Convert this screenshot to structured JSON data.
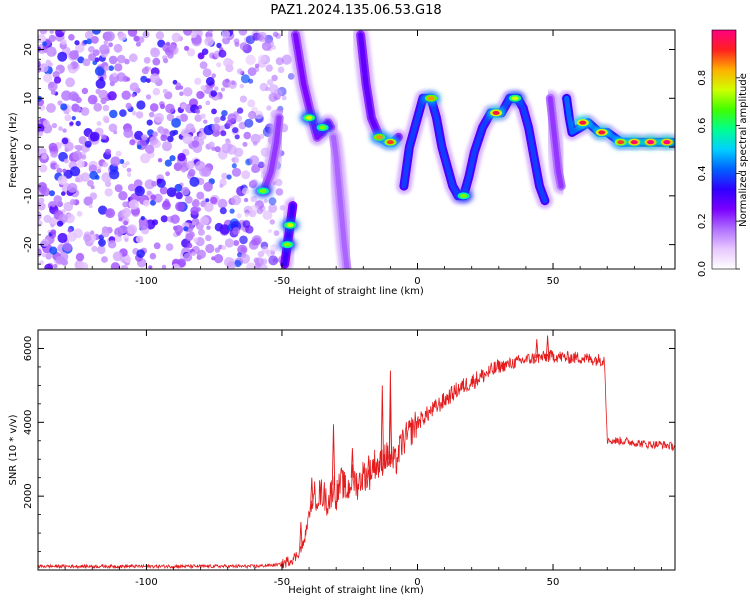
{
  "title": "PAZ1.2024.135.06.53.G18",
  "chart_data": [
    {
      "type": "heatmap",
      "xlabel": "Height of straight line (km)",
      "ylabel": "Frequency (Hz)",
      "xlim": [
        -140,
        95
      ],
      "ylim": [
        -25,
        24
      ],
      "xticks": [
        -100,
        -50,
        0,
        50
      ],
      "yticks": [
        -20,
        -10,
        0,
        10,
        20
      ],
      "grid": false,
      "colorbar": {
        "label": "Normalized spectral amplitude",
        "range": [
          0,
          1
        ],
        "ticks": [
          0.0,
          0.2,
          0.4,
          0.6,
          0.8
        ],
        "tick_labels": [
          "0.0",
          "0.2",
          "0.4",
          "0.6",
          "0.8"
        ],
        "colormap": [
          "#ffffff",
          "#e8c8ff",
          "#b070ff",
          "#7a00ff",
          "#2f00ff",
          "#0060ff",
          "#00d0ff",
          "#00ff90",
          "#40ff00",
          "#d0ff00",
          "#ffb000",
          "#ff2020",
          "#ff0080"
        ]
      },
      "noise_region": {
        "x_range": [
          -140,
          -50
        ],
        "freq_range": [
          -25,
          24
        ],
        "level": 0.15
      },
      "ridges": [
        {
          "segment": 1,
          "points": [
            [
              -56,
              -8
            ],
            [
              -54,
              -5
            ],
            [
              -53,
              -2
            ],
            [
              -52,
              1
            ],
            [
              -51,
              6
            ]
          ],
          "amplitude": 0.3
        },
        {
          "segment": 2,
          "points": [
            [
              -49,
              -24
            ],
            [
              -48,
              -20
            ],
            [
              -47,
              -16
            ],
            [
              -46,
              -12
            ]
          ],
          "amplitude": 0.45
        },
        {
          "segment": 3,
          "points": [
            [
              -45,
              23
            ],
            [
              -42,
              13
            ],
            [
              -39,
              6
            ],
            [
              -37,
              2
            ],
            [
              -35,
              3
            ],
            [
              -33,
              5
            ],
            [
              -32,
              4
            ]
          ],
          "amplitude": 0.35
        },
        {
          "segment": 4,
          "points": [
            [
              -31,
              2
            ],
            [
              -30,
              -2
            ],
            [
              -29,
              -8
            ],
            [
              -28,
              -14
            ],
            [
              -27,
              -20
            ],
            [
              -26,
              -25
            ]
          ],
          "amplitude": 0.25
        },
        {
          "segment": 5,
          "points": [
            [
              -21,
              23
            ],
            [
              -19,
              13
            ],
            [
              -17,
              6
            ],
            [
              -14,
              2
            ],
            [
              -11,
              1
            ],
            [
              -9,
              1
            ],
            [
              -7,
              2
            ]
          ],
          "amplitude": 0.4
        },
        {
          "segment": 6,
          "points": [
            [
              -5,
              -8
            ],
            [
              -3,
              0
            ],
            [
              0,
              6
            ],
            [
              2,
              10
            ],
            [
              5,
              10
            ],
            [
              7,
              6
            ],
            [
              9,
              0
            ],
            [
              11,
              -4
            ],
            [
              13,
              -8
            ],
            [
              15,
              -10
            ],
            [
              17,
              -10
            ],
            [
              19,
              -6
            ],
            [
              21,
              -1
            ],
            [
              24,
              4
            ],
            [
              27,
              7
            ],
            [
              31,
              7
            ],
            [
              34,
              10
            ],
            [
              37,
              10
            ],
            [
              39,
              8
            ],
            [
              41,
              4
            ],
            [
              43,
              -2
            ],
            [
              45,
              -8
            ],
            [
              47,
              -11
            ]
          ],
          "amplitude": 0.55
        },
        {
          "segment": 7,
          "points": [
            [
              49,
              10
            ],
            [
              50,
              5
            ],
            [
              51,
              0
            ],
            [
              52,
              -5
            ],
            [
              53,
              -8
            ]
          ],
          "amplitude": 0.3
        },
        {
          "segment": 8,
          "points": [
            [
              55,
              10
            ],
            [
              56,
              6
            ],
            [
              57,
              3
            ],
            [
              60,
              4
            ],
            [
              63,
              5
            ],
            [
              67,
              3
            ],
            [
              70,
              3
            ],
            [
              75,
              1
            ],
            [
              80,
              1
            ],
            [
              90,
              1
            ],
            [
              94,
              1
            ]
          ],
          "amplitude": 0.6
        }
      ],
      "hot_spots": [
        {
          "x": -40,
          "y": 6,
          "amplitude": 0.75
        },
        {
          "x": -35,
          "y": 4,
          "amplitude": 0.7
        },
        {
          "x": -14,
          "y": 2,
          "amplitude": 0.85
        },
        {
          "x": -10,
          "y": 1,
          "amplitude": 0.9
        },
        {
          "x": 5,
          "y": 10,
          "amplitude": 0.85
        },
        {
          "x": 17,
          "y": -10,
          "amplitude": 0.7
        },
        {
          "x": 29,
          "y": 7,
          "amplitude": 0.95
        },
        {
          "x": 36,
          "y": 10,
          "amplitude": 0.75
        },
        {
          "x": 61,
          "y": 5,
          "amplitude": 0.95
        },
        {
          "x": 68,
          "y": 3,
          "amplitude": 0.95
        },
        {
          "x": 75,
          "y": 1,
          "amplitude": 0.9
        },
        {
          "x": 80,
          "y": 1,
          "amplitude": 0.98
        },
        {
          "x": 86,
          "y": 1,
          "amplitude": 1.0
        },
        {
          "x": 92,
          "y": 1,
          "amplitude": 1.0
        },
        {
          "x": -57,
          "y": -9,
          "amplitude": 0.7
        },
        {
          "x": -47,
          "y": -16,
          "amplitude": 0.75
        },
        {
          "x": -48,
          "y": -20,
          "amplitude": 0.7
        }
      ]
    },
    {
      "type": "line",
      "xlabel": "Height of straight line (km)",
      "ylabel": "SNR (10 * v/v)",
      "xlim": [
        -140,
        95
      ],
      "ylim": [
        0,
        6500
      ],
      "xticks": [
        -100,
        -50,
        0,
        50
      ],
      "yticks": [
        2000,
        4000,
        6000
      ],
      "grid": false,
      "series": [
        {
          "color": "#e41a1c",
          "x": [
            -140,
            -110,
            -80,
            -60,
            -50,
            -45,
            -42,
            -40,
            -38,
            -35,
            -33,
            -31,
            -30,
            -28,
            -26,
            -24,
            -22,
            -20,
            -18,
            -16,
            -14,
            -12,
            -10,
            -8,
            -6,
            -4,
            -2,
            0,
            5,
            10,
            15,
            20,
            25,
            30,
            35,
            40,
            45,
            50,
            55,
            60,
            65,
            69,
            70,
            71,
            75,
            80,
            85,
            90,
            94
          ],
          "y": [
            100,
            100,
            100,
            100,
            150,
            350,
            700,
            1500,
            2000,
            2100,
            1800,
            2300,
            2000,
            2400,
            2100,
            2500,
            2300,
            2600,
            2500,
            2900,
            2800,
            3100,
            3000,
            2900,
            3400,
            3600,
            3800,
            4000,
            4300,
            4600,
            4900,
            5100,
            5300,
            5500,
            5600,
            5700,
            5750,
            5800,
            5750,
            5750,
            5700,
            5700,
            3600,
            3500,
            3500,
            3450,
            3400,
            3400,
            3350
          ]
        }
      ],
      "spikes": [
        {
          "x": -43,
          "y": 1300
        },
        {
          "x": -39,
          "y": 2500
        },
        {
          "x": -31,
          "y": 3950
        },
        {
          "x": -24,
          "y": 3300
        },
        {
          "x": -18,
          "y": 3100
        },
        {
          "x": -13,
          "y": 5000
        },
        {
          "x": -10,
          "y": 4650
        },
        {
          "x": -10,
          "y": 5400
        },
        {
          "x": 48,
          "y": 6350
        },
        {
          "x": 44,
          "y": 6250
        }
      ]
    }
  ]
}
